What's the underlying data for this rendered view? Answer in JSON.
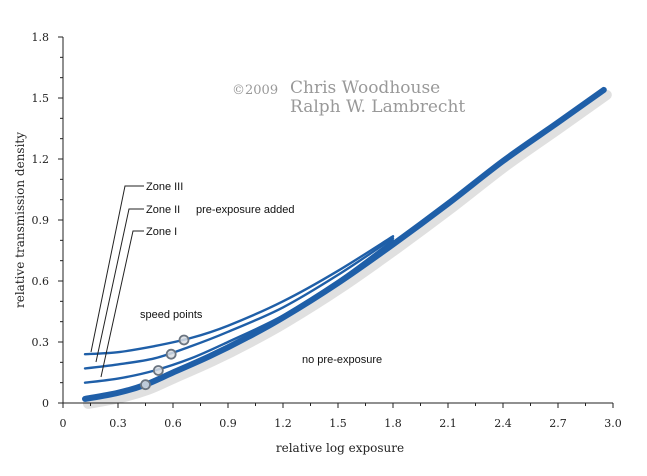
{
  "chart_data": {
    "type": "line",
    "xlabel": "relative log exposure",
    "ylabel": "relative transmission density",
    "xlim": [
      0,
      3.0
    ],
    "ylim": [
      0,
      1.8
    ],
    "x_ticks": [
      "0",
      "0.3",
      "0.6",
      "0.9",
      "1.2",
      "1.5",
      "1.8",
      "2.1",
      "2.4",
      "2.7",
      "3.0"
    ],
    "y_ticks": [
      "0",
      "0.3",
      "0.6",
      "0.9",
      "1.2",
      "1.5",
      "1.8"
    ],
    "grid": false,
    "colors": {
      "curve": "#1f5fa8",
      "marker_stroke": "#6a7480",
      "copyright": "#9a9a9a"
    },
    "series": [
      {
        "name": "no pre-exposure",
        "emphasis": true,
        "points": [
          [
            0.12,
            0.02
          ],
          [
            0.3,
            0.05
          ],
          [
            0.45,
            0.09
          ],
          [
            0.6,
            0.15
          ],
          [
            0.8,
            0.23
          ],
          [
            1.0,
            0.32
          ],
          [
            1.2,
            0.42
          ],
          [
            1.5,
            0.59
          ],
          [
            1.8,
            0.78
          ],
          [
            2.1,
            0.98
          ],
          [
            2.4,
            1.19
          ],
          [
            2.7,
            1.38
          ],
          [
            2.95,
            1.54
          ]
        ],
        "speed_point": [
          0.45,
          0.09
        ]
      },
      {
        "name": "Zone I",
        "points": [
          [
            0.12,
            0.1
          ],
          [
            0.3,
            0.12
          ],
          [
            0.5,
            0.16
          ],
          [
            0.7,
            0.22
          ],
          [
            0.9,
            0.3
          ],
          [
            1.2,
            0.43
          ],
          [
            1.5,
            0.6
          ],
          [
            1.8,
            0.8
          ]
        ],
        "speed_point": [
          0.52,
          0.16
        ]
      },
      {
        "name": "Zone II",
        "points": [
          [
            0.12,
            0.17
          ],
          [
            0.3,
            0.19
          ],
          [
            0.5,
            0.22
          ],
          [
            0.7,
            0.28
          ],
          [
            0.9,
            0.35
          ],
          [
            1.2,
            0.47
          ],
          [
            1.5,
            0.63
          ],
          [
            1.8,
            0.81
          ]
        ],
        "speed_point": [
          0.59,
          0.24
        ]
      },
      {
        "name": "Zone III",
        "points": [
          [
            0.12,
            0.24
          ],
          [
            0.3,
            0.25
          ],
          [
            0.5,
            0.28
          ],
          [
            0.7,
            0.32
          ],
          [
            0.9,
            0.38
          ],
          [
            1.2,
            0.5
          ],
          [
            1.5,
            0.65
          ],
          [
            1.8,
            0.82
          ]
        ],
        "speed_point": [
          0.66,
          0.31
        ]
      }
    ],
    "annotations": {
      "copyright_symbol": "©2009",
      "copyright_line1": "Chris Woodhouse",
      "copyright_line2": "Ralph W. Lambrecht",
      "pre_exposure": "pre-exposure added",
      "speed_points": "speed points",
      "no_pre_exposure": "no pre-exposure",
      "zone_iii": "Zone III",
      "zone_ii": "Zone II",
      "zone_i": "Zone I"
    }
  }
}
